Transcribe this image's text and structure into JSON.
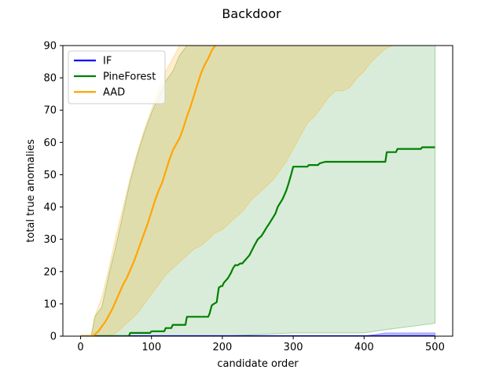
{
  "chart_data": {
    "type": "line",
    "title": "Backdoor",
    "xlabel": "candidate order",
    "ylabel": "total true anomalies",
    "xlim": [
      -25,
      525
    ],
    "ylim": [
      0,
      90
    ],
    "xticks": [
      0,
      100,
      200,
      300,
      400,
      500
    ],
    "yticks": [
      0,
      10,
      20,
      30,
      40,
      50,
      60,
      70,
      80,
      90
    ],
    "grid": false,
    "legend_position": "top-left",
    "series": [
      {
        "name": "IF",
        "color": "#0000ff",
        "x": [
          0,
          500
        ],
        "y": [
          0,
          0
        ],
        "band_x": [
          0,
          200,
          400,
          430,
          500
        ],
        "band_lower": [
          0,
          0,
          0,
          0,
          0
        ],
        "band_upper": [
          0,
          0,
          0,
          1,
          1
        ]
      },
      {
        "name": "PineForest",
        "color": "#008000",
        "x": [
          0,
          68,
          70,
          98,
          100,
          118,
          120,
          128,
          130,
          148,
          150,
          158,
          160,
          180,
          182,
          185,
          188,
          192,
          195,
          198,
          200,
          202,
          208,
          212,
          215,
          218,
          222,
          225,
          228,
          232,
          238,
          245,
          250,
          255,
          258,
          262,
          268,
          275,
          278,
          285,
          290,
          293,
          297,
          300,
          305,
          320,
          322,
          335,
          337,
          345,
          355,
          420,
          430,
          432,
          445,
          447,
          480,
          482,
          500
        ],
        "y": [
          0,
          0,
          1,
          1,
          1.5,
          1.5,
          2.5,
          2.5,
          3.5,
          3.5,
          6,
          6,
          6,
          6,
          7,
          9.5,
          10,
          10.5,
          15,
          15.5,
          15.5,
          16.5,
          18,
          19.5,
          21,
          22,
          22,
          22.5,
          22.5,
          23.5,
          25,
          28,
          30,
          31,
          32,
          33.5,
          35.5,
          38,
          40,
          42.5,
          45,
          47,
          50,
          52.5,
          52.5,
          52.5,
          53,
          53,
          53.5,
          54,
          54,
          54,
          54,
          57,
          57,
          58,
          58,
          58.5,
          58.5
        ],
        "band_x": [
          0,
          15,
          20,
          30,
          40,
          50,
          60,
          70,
          80,
          90,
          100,
          110,
          120,
          130,
          140,
          150,
          160,
          170,
          180,
          200,
          300,
          400,
          430,
          500
        ],
        "band_lower": [
          0,
          0,
          0,
          0,
          0,
          0,
          0,
          0,
          0,
          0,
          0,
          0,
          0,
          0,
          0,
          0,
          0,
          0,
          0,
          0,
          1,
          1,
          2,
          4
        ],
        "band_upper": [
          0,
          0,
          6,
          9,
          19,
          28,
          38,
          48,
          56,
          63,
          69,
          74,
          79,
          82,
          87,
          90,
          90,
          90,
          90,
          90,
          90,
          90,
          90,
          90
        ]
      },
      {
        "name": "AAD",
        "color": "#ffa500",
        "x": [
          0,
          15,
          20,
          25,
          30,
          35,
          40,
          45,
          50,
          55,
          60,
          65,
          70,
          75,
          80,
          85,
          90,
          95,
          100,
          105,
          110,
          115,
          120,
          125,
          130,
          135,
          140,
          145,
          150,
          155,
          160,
          165,
          170,
          175,
          180,
          185,
          190
        ],
        "y": [
          0,
          0,
          0.5,
          1.5,
          3,
          4.5,
          6.5,
          8.5,
          11,
          13.5,
          16,
          18,
          20.5,
          23,
          26,
          29,
          32,
          35,
          38.5,
          42,
          45,
          47.5,
          51,
          54.5,
          57.5,
          59.5,
          61.5,
          64.5,
          68,
          71,
          74.5,
          78,
          81.5,
          84,
          86,
          88.5,
          90
        ],
        "band_x": [
          0,
          15,
          20,
          25,
          30,
          40,
          50,
          60,
          70,
          80,
          90,
          100,
          110,
          120,
          130,
          140,
          150,
          160,
          170,
          180,
          190,
          200,
          210,
          220,
          230,
          240,
          250,
          260,
          270,
          280,
          290,
          300,
          310,
          320,
          330,
          340,
          350,
          360,
          370,
          380,
          390,
          400,
          410,
          420,
          430,
          440
        ],
        "band_lower": [
          0,
          0,
          0,
          0,
          0,
          0,
          1,
          3,
          5,
          7,
          10,
          13,
          16,
          19,
          21,
          23,
          25,
          27,
          28,
          30,
          32,
          33,
          35,
          37,
          39,
          42,
          44,
          46,
          48,
          51,
          54,
          58,
          62,
          66,
          68,
          71,
          74,
          76,
          76,
          77,
          80,
          82,
          85,
          87,
          89,
          90
        ],
        "band_upper": [
          0,
          0,
          6,
          9,
          12,
          21,
          31,
          40,
          49,
          57,
          64,
          70,
          76,
          82,
          86,
          90,
          90,
          90,
          90,
          90,
          90,
          90,
          90,
          90,
          90,
          90,
          90,
          90,
          90,
          90,
          90,
          90,
          90,
          90,
          90,
          90,
          90,
          90,
          90,
          90,
          90,
          90,
          90,
          90,
          90,
          90
        ]
      }
    ]
  }
}
